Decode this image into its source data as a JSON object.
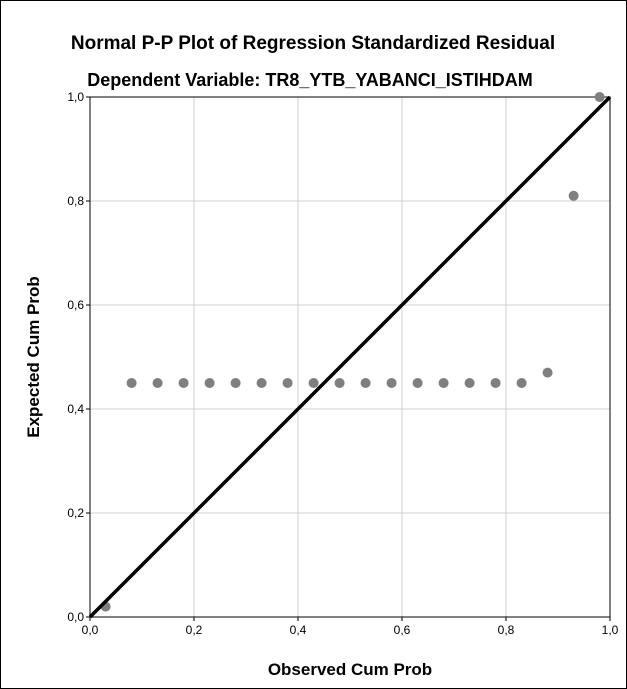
{
  "chart_data": {
    "type": "scatter",
    "title": "Normal P-P Plot of Regression Standardized Residual",
    "subtitle": "Dependent Variable: TR8_YTB_YABANCI_ISTIHDAM",
    "xlabel": "Observed Cum Prob",
    "ylabel": "Expected Cum Prob",
    "xlim": [
      0,
      1
    ],
    "ylim": [
      0,
      1
    ],
    "x_ticks": [
      "0,0",
      "0,2",
      "0,4",
      "0,6",
      "0,8",
      "1,0"
    ],
    "y_ticks": [
      "0,0",
      "0,2",
      "0,4",
      "0,6",
      "0,8",
      "1,0"
    ],
    "grid": true,
    "reference_line": [
      [
        0,
        0
      ],
      [
        1,
        1
      ]
    ],
    "point_color": "#7f7f7f",
    "line_color": "#000000",
    "points": [
      {
        "x": 0.03,
        "y": 0.02
      },
      {
        "x": 0.08,
        "y": 0.45
      },
      {
        "x": 0.13,
        "y": 0.45
      },
      {
        "x": 0.18,
        "y": 0.45
      },
      {
        "x": 0.23,
        "y": 0.45
      },
      {
        "x": 0.28,
        "y": 0.45
      },
      {
        "x": 0.33,
        "y": 0.45
      },
      {
        "x": 0.38,
        "y": 0.45
      },
      {
        "x": 0.43,
        "y": 0.45
      },
      {
        "x": 0.48,
        "y": 0.45
      },
      {
        "x": 0.53,
        "y": 0.45
      },
      {
        "x": 0.58,
        "y": 0.45
      },
      {
        "x": 0.63,
        "y": 0.45
      },
      {
        "x": 0.68,
        "y": 0.45
      },
      {
        "x": 0.73,
        "y": 0.45
      },
      {
        "x": 0.78,
        "y": 0.45
      },
      {
        "x": 0.83,
        "y": 0.45
      },
      {
        "x": 0.88,
        "y": 0.47
      },
      {
        "x": 0.93,
        "y": 0.81
      },
      {
        "x": 0.98,
        "y": 1.0
      }
    ]
  }
}
